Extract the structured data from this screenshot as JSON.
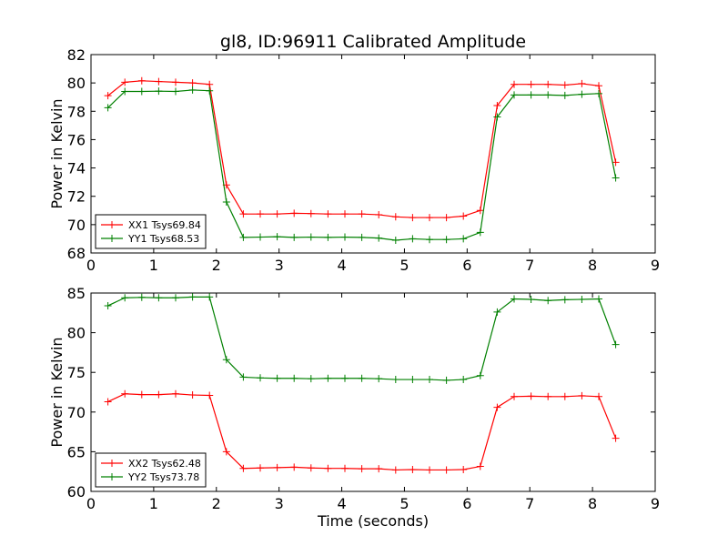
{
  "figure": {
    "title": "gl8, ID:96911 Calibrated Amplitude",
    "shared_xlabel": "Time (seconds)"
  },
  "chart_data": [
    {
      "type": "line",
      "ylabel": "Power in Kelvin",
      "xlabel": "",
      "xlim": [
        0,
        9
      ],
      "ylim": [
        68,
        82
      ],
      "xticks": [
        0,
        1,
        2,
        3,
        4,
        5,
        6,
        7,
        8,
        9
      ],
      "yticks": [
        68,
        70,
        72,
        74,
        76,
        78,
        80,
        82
      ],
      "grid": false,
      "legend_position": "lower-left",
      "x": [
        0.27,
        0.54,
        0.81,
        1.08,
        1.35,
        1.62,
        1.89,
        2.16,
        2.43,
        2.7,
        2.97,
        3.24,
        3.51,
        3.78,
        4.05,
        4.32,
        4.59,
        4.86,
        5.13,
        5.4,
        5.67,
        5.94,
        6.21,
        6.48,
        6.75,
        7.02,
        7.29,
        7.56,
        7.83,
        8.1,
        8.37
      ],
      "series": [
        {
          "name": "XX1 Tsys69.84",
          "color": "#ff0000",
          "values": [
            79.1,
            80.05,
            80.15,
            80.1,
            80.05,
            80.0,
            79.9,
            72.8,
            70.75,
            70.75,
            70.75,
            70.8,
            70.78,
            70.75,
            70.75,
            70.75,
            70.7,
            70.55,
            70.5,
            70.5,
            70.5,
            70.6,
            71.0,
            78.4,
            79.9,
            79.9,
            79.9,
            79.85,
            79.95,
            79.8,
            74.4
          ]
        },
        {
          "name": "YY1 Tsys68.53",
          "color": "#008000",
          "values": [
            78.25,
            79.4,
            79.4,
            79.42,
            79.4,
            79.5,
            79.45,
            71.6,
            69.1,
            69.12,
            69.15,
            69.1,
            69.12,
            69.1,
            69.12,
            69.1,
            69.05,
            68.9,
            69.0,
            68.95,
            68.95,
            69.0,
            69.45,
            77.6,
            79.15,
            79.15,
            79.15,
            79.12,
            79.2,
            79.25,
            73.3
          ]
        }
      ]
    },
    {
      "type": "line",
      "ylabel": "Power in Kelvin",
      "xlabel": "Time (seconds)",
      "xlim": [
        0,
        9
      ],
      "ylim": [
        60,
        85
      ],
      "xticks": [
        0,
        1,
        2,
        3,
        4,
        5,
        6,
        7,
        8,
        9
      ],
      "yticks": [
        60,
        65,
        70,
        75,
        80,
        85
      ],
      "grid": false,
      "legend_position": "lower-left",
      "x": [
        0.27,
        0.54,
        0.81,
        1.08,
        1.35,
        1.62,
        1.89,
        2.16,
        2.43,
        2.7,
        2.97,
        3.24,
        3.51,
        3.78,
        4.05,
        4.32,
        4.59,
        4.86,
        5.13,
        5.4,
        5.67,
        5.94,
        6.21,
        6.48,
        6.75,
        7.02,
        7.29,
        7.56,
        7.83,
        8.1,
        8.37
      ],
      "series": [
        {
          "name": "XX2 Tsys62.48",
          "color": "#ff0000",
          "values": [
            71.3,
            72.3,
            72.2,
            72.2,
            72.3,
            72.15,
            72.1,
            65.0,
            62.9,
            62.95,
            63.0,
            63.05,
            62.95,
            62.9,
            62.9,
            62.85,
            62.85,
            62.7,
            62.75,
            62.7,
            62.7,
            62.75,
            63.15,
            70.6,
            71.95,
            72.0,
            71.95,
            71.95,
            72.05,
            71.95,
            66.7
          ]
        },
        {
          "name": "YY2 Tsys73.78",
          "color": "#008000",
          "values": [
            83.4,
            84.4,
            84.45,
            84.4,
            84.4,
            84.5,
            84.5,
            76.6,
            74.4,
            74.3,
            74.25,
            74.25,
            74.2,
            74.25,
            74.25,
            74.25,
            74.2,
            74.1,
            74.1,
            74.1,
            74.0,
            74.1,
            74.6,
            82.6,
            84.25,
            84.2,
            84.05,
            84.15,
            84.2,
            84.25,
            78.5
          ]
        }
      ]
    }
  ]
}
